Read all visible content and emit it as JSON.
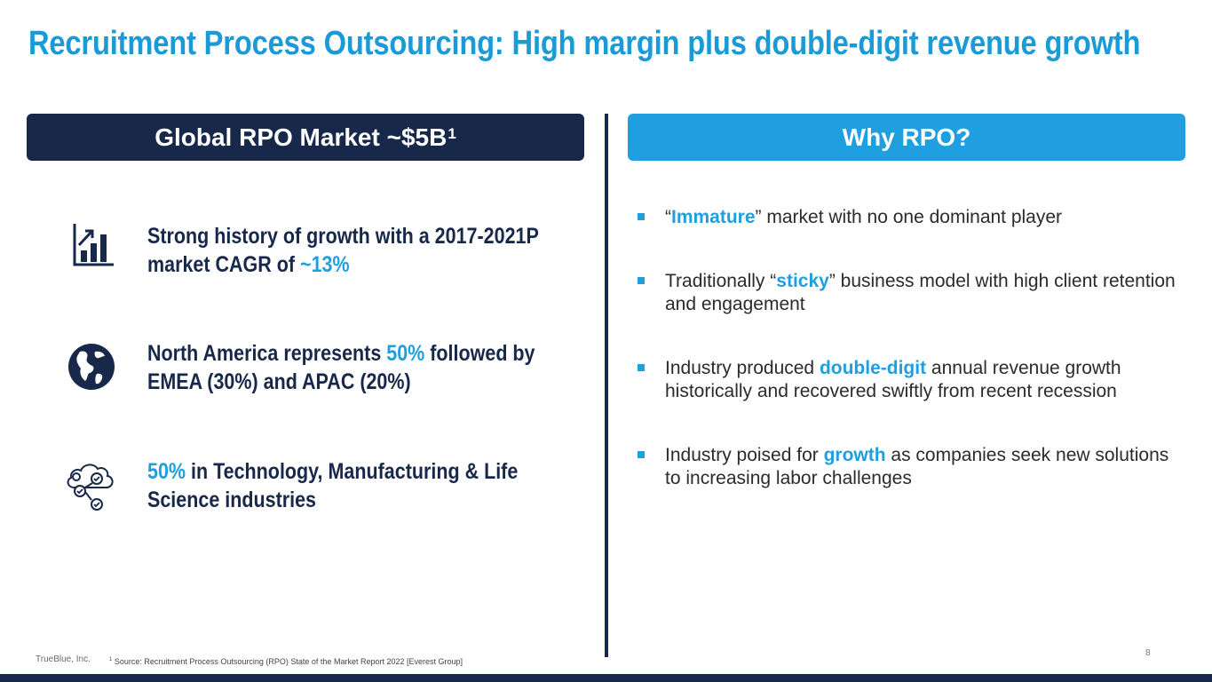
{
  "title": "Recruitment Process Outsourcing: High margin plus double-digit revenue growth",
  "left_banner": {
    "text": "Global RPO Market ~$5B",
    "superscript": "1"
  },
  "right_banner": {
    "text": "Why RPO?"
  },
  "left_items": [
    {
      "icon": "growth-chart-icon",
      "text_before": "Strong history of growth with a 2017-2021P market CAGR of ",
      "highlight": "~13%",
      "text_after": ""
    },
    {
      "icon": "globe-icon",
      "text_before": "North America represents ",
      "highlight": "50%",
      "text_after": " followed by EMEA (30%) and APAC (20%)"
    },
    {
      "icon": "cloud-network-icon",
      "text_before": "",
      "highlight": "50%",
      "text_after": " in Technology, Manufacturing & Life Science industries"
    }
  ],
  "bullets": [
    {
      "before": "“",
      "highlight": "Immature",
      "after": "” market with no one dominant player"
    },
    {
      "before": "Traditionally “",
      "highlight": "sticky",
      "after": "” business model with high client retention and engagement"
    },
    {
      "before": "Industry produced ",
      "highlight": "double-digit",
      "after": " annual revenue growth historically and recovered swiftly from recent recession"
    },
    {
      "before": "Industry poised for ",
      "highlight": "growth",
      "after": " as companies seek new solutions to increasing labor challenges"
    }
  ],
  "footer": {
    "company": "TrueBlue, Inc.",
    "footnote_mark": "1",
    "footnote": " Source: Recruitment Process Outsourcing (RPO) State of the Market Report 2022 [Everest Group]",
    "page_number": "8"
  },
  "colors": {
    "navy": "#17284a",
    "accent_blue": "#1f9ee0",
    "title_blue": "#1a9ad6"
  }
}
